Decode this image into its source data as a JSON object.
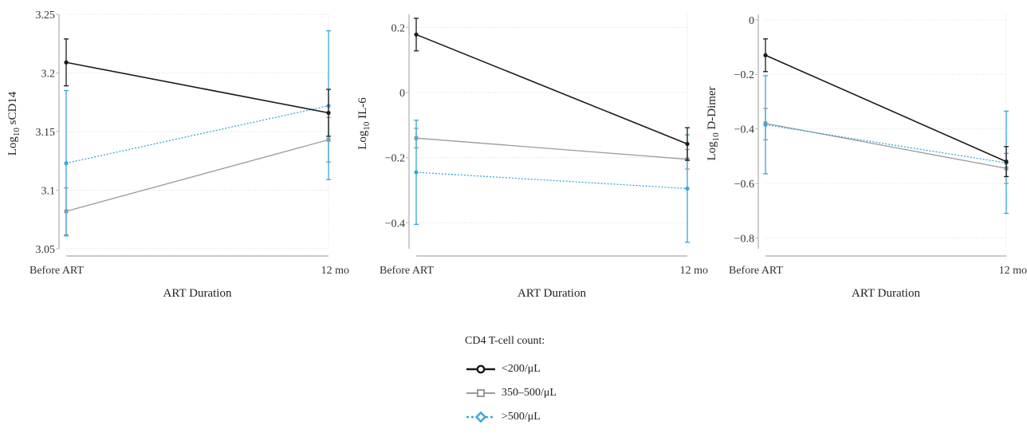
{
  "chart_data": [
    {
      "type": "line",
      "ylabel_prefix": "Log",
      "ylabel_sub": "10",
      "ylabel_suffix": " sCD14",
      "xlabel": "ART Duration",
      "categories": [
        "Before ART",
        "12 mo"
      ],
      "ylim": [
        3.05,
        3.25
      ],
      "yticks": [
        "3.05",
        "3.1",
        "3.15",
        "3.2",
        "3.25"
      ],
      "yticks_values": [
        3.05,
        3.1,
        3.15,
        3.2,
        3.25
      ],
      "grid": true,
      "series": [
        {
          "name": "<200/μL",
          "values": [
            3.209,
            3.166
          ],
          "err_low": [
            3.189,
            3.146
          ],
          "err_high": [
            3.229,
            3.186
          ]
        },
        {
          "name": "350–500/μL",
          "values": [
            3.082,
            3.143
          ],
          "err_low": [
            3.062,
            3.124
          ],
          "err_high": [
            3.102,
            3.162
          ]
        },
        {
          "name": ">500/μL",
          "values": [
            3.123,
            3.172
          ],
          "err_low": [
            3.061,
            3.109
          ],
          "err_high": [
            3.185,
            3.236
          ]
        }
      ]
    },
    {
      "type": "line",
      "ylabel_prefix": "Log",
      "ylabel_sub": "10",
      "ylabel_suffix": " IL-6",
      "xlabel": "ART Duration",
      "categories": [
        "Before ART",
        "12 mo"
      ],
      "ylim": [
        -0.48,
        0.24
      ],
      "yticks": [
        "−0.4",
        "−0.2",
        "0",
        "0.2"
      ],
      "yticks_values": [
        -0.4,
        -0.2,
        0,
        0.2
      ],
      "grid": true,
      "series": [
        {
          "name": "<200/μL",
          "values": [
            0.178,
            -0.158
          ],
          "err_low": [
            0.128,
            -0.208
          ],
          "err_high": [
            0.228,
            -0.108
          ]
        },
        {
          "name": "350–500/μL",
          "values": [
            -0.14,
            -0.205
          ],
          "err_low": [
            -0.17,
            -0.235
          ],
          "err_high": [
            -0.11,
            -0.175
          ]
        },
        {
          "name": ">500/μL",
          "values": [
            -0.245,
            -0.295
          ],
          "err_low": [
            -0.405,
            -0.46
          ],
          "err_high": [
            -0.085,
            -0.13
          ]
        }
      ]
    },
    {
      "type": "line",
      "ylabel_prefix": "Log",
      "ylabel_sub": "10",
      "ylabel_suffix": " D-Dimer",
      "xlabel": "ART Duration",
      "categories": [
        "Before ART",
        "12 mo"
      ],
      "ylim": [
        -0.84,
        0.02
      ],
      "yticks": [
        "−0.8",
        "−0.6",
        "−0.4",
        "−0.2",
        "0"
      ],
      "yticks_values": [
        -0.8,
        -0.6,
        -0.4,
        -0.2,
        0
      ],
      "grid": true,
      "series": [
        {
          "name": "<200/μL",
          "values": [
            -0.13,
            -0.52
          ],
          "err_low": [
            -0.19,
            -0.575
          ],
          "err_high": [
            -0.07,
            -0.465
          ]
        },
        {
          "name": "350–500/μL",
          "values": [
            -0.38,
            -0.545
          ],
          "err_low": [
            -0.44,
            -0.6
          ],
          "err_high": [
            -0.325,
            -0.49
          ]
        },
        {
          "name": ">500/μL",
          "values": [
            -0.385,
            -0.525
          ],
          "err_low": [
            -0.565,
            -0.71
          ],
          "err_high": [
            -0.205,
            -0.335
          ]
        }
      ]
    }
  ],
  "legend": {
    "title": "CD4 T-cell count:",
    "placement": "bottom-center",
    "items": [
      {
        "label": "<200/μL",
        "color": "#1a1a1a",
        "style": "solid",
        "marker": "circle"
      },
      {
        "label": "350–500/μL",
        "color": "#9a9a9a",
        "style": "solid",
        "marker": "square"
      },
      {
        "label": ">500/μL",
        "color": "#3aa6d8",
        "style": "dotted",
        "marker": "diamond"
      }
    ]
  },
  "series_colors": [
    "#1a1a1a",
    "#9a9a9a",
    "#3aa6d8"
  ]
}
